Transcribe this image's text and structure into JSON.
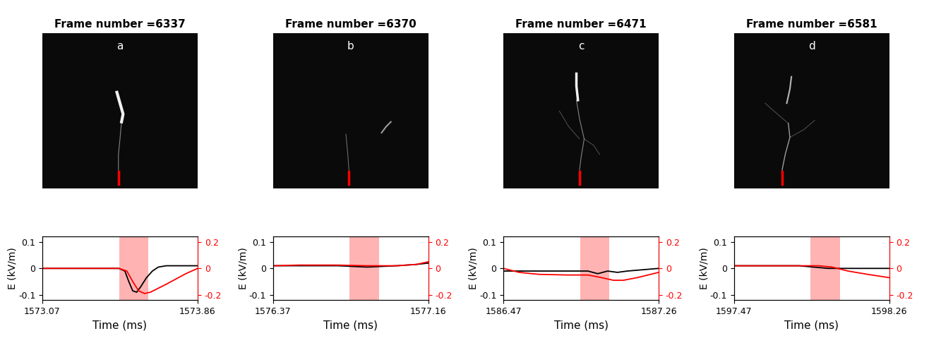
{
  "chart_data": [
    {
      "type": "line",
      "panel_title": "Frame number =6337",
      "panel_label": "a",
      "xlabel": "Time (ms)",
      "ylabel": "E (kV/m)",
      "xlim": [
        1573.07,
        1573.86
      ],
      "xticks": [
        1573.07,
        1573.86
      ],
      "ylim": [
        -0.12,
        0.12
      ],
      "yticks": [
        -0.1,
        0,
        0.1
      ],
      "y2lim": [
        -0.24,
        0.24
      ],
      "y2ticks": [
        -0.2,
        0,
        0.2
      ],
      "span": [
        1573.46,
        1573.61
      ],
      "series": [
        {
          "color": "black",
          "x": [
            1573.07,
            1573.2,
            1573.35,
            1573.46,
            1573.49,
            1573.51,
            1573.53,
            1573.55,
            1573.57,
            1573.6,
            1573.63,
            1573.66,
            1573.7,
            1573.78,
            1573.86
          ],
          "values": [
            0,
            0,
            0,
            0,
            -0.01,
            -0.05,
            -0.085,
            -0.09,
            -0.07,
            -0.035,
            -0.01,
            0.005,
            0.01,
            0.01,
            0.01
          ]
        },
        {
          "color": "red",
          "axis": "y2",
          "x": [
            1573.07,
            1573.2,
            1573.35,
            1573.46,
            1573.5,
            1573.53,
            1573.56,
            1573.59,
            1573.62,
            1573.66,
            1573.7,
            1573.75,
            1573.8,
            1573.86
          ],
          "values": [
            0,
            0,
            0,
            0,
            -0.02,
            -0.1,
            -0.17,
            -0.19,
            -0.18,
            -0.15,
            -0.12,
            -0.08,
            -0.04,
            0.0
          ]
        }
      ]
    },
    {
      "type": "line",
      "panel_title": "Frame number =6370",
      "panel_label": "b",
      "xlabel": "Time (ms)",
      "ylabel": "E (kV/m)",
      "xlim": [
        1576.37,
        1577.16
      ],
      "xticks": [
        1576.37,
        1577.16
      ],
      "ylim": [
        -0.12,
        0.12
      ],
      "yticks": [
        -0.1,
        0,
        0.1
      ],
      "y2lim": [
        -0.24,
        0.24
      ],
      "y2ticks": [
        -0.2,
        0,
        0.2
      ],
      "span": [
        1576.76,
        1576.91
      ],
      "series": [
        {
          "color": "black",
          "x": [
            1576.37,
            1576.5,
            1576.7,
            1576.85,
            1577.0,
            1577.1,
            1577.16
          ],
          "values": [
            0.01,
            0.01,
            0.01,
            0.005,
            0.01,
            0.015,
            0.02
          ]
        },
        {
          "color": "red",
          "axis": "y2",
          "x": [
            1576.37,
            1576.5,
            1576.7,
            1576.85,
            1577.0,
            1577.1,
            1577.16
          ],
          "values": [
            0.02,
            0.025,
            0.025,
            0.02,
            0.02,
            0.03,
            0.05
          ]
        }
      ]
    },
    {
      "type": "line",
      "panel_title": "Frame number =6471",
      "panel_label": "c",
      "xlabel": "Time (ms)",
      "ylabel": "E (kV/m)",
      "xlim": [
        1586.47,
        1587.26
      ],
      "xticks": [
        1586.47,
        1587.26
      ],
      "ylim": [
        -0.12,
        0.12
      ],
      "yticks": [
        -0.1,
        0,
        0.1
      ],
      "y2lim": [
        -0.24,
        0.24
      ],
      "y2ticks": [
        -0.2,
        0,
        0.2
      ],
      "span": [
        1586.86,
        1587.01
      ],
      "series": [
        {
          "color": "black",
          "x": [
            1586.47,
            1586.6,
            1586.8,
            1586.9,
            1586.95,
            1587.0,
            1587.05,
            1587.1,
            1587.26
          ],
          "values": [
            -0.01,
            -0.01,
            -0.01,
            -0.01,
            -0.02,
            -0.01,
            -0.015,
            -0.01,
            0.0
          ]
        },
        {
          "color": "red",
          "axis": "y2",
          "x": [
            1586.47,
            1586.55,
            1586.65,
            1586.8,
            1586.9,
            1586.97,
            1587.03,
            1587.08,
            1587.15,
            1587.26
          ],
          "values": [
            0.0,
            -0.03,
            -0.045,
            -0.05,
            -0.05,
            -0.07,
            -0.09,
            -0.09,
            -0.07,
            -0.03
          ]
        }
      ]
    },
    {
      "type": "line",
      "panel_title": "Frame number =6581",
      "panel_label": "d",
      "xlabel": "Time (ms)",
      "ylabel": "E (kV/m)",
      "xlim": [
        1597.47,
        1598.26
      ],
      "xticks": [
        1597.47,
        1598.26
      ],
      "ylim": [
        -0.12,
        0.12
      ],
      "yticks": [
        -0.1,
        0,
        0.1
      ],
      "y2lim": [
        -0.24,
        0.24
      ],
      "y2ticks": [
        -0.2,
        0,
        0.2
      ],
      "span": [
        1597.86,
        1598.01
      ],
      "series": [
        {
          "color": "black",
          "x": [
            1597.47,
            1597.6,
            1597.8,
            1597.95,
            1598.05,
            1598.26
          ],
          "values": [
            0.01,
            0.01,
            0.01,
            0.0,
            0.0,
            0.0
          ]
        },
        {
          "color": "red",
          "axis": "y2",
          "x": [
            1597.47,
            1597.7,
            1597.9,
            1597.97,
            1598.05,
            1598.15,
            1598.26
          ],
          "values": [
            0.02,
            0.02,
            0.02,
            0.01,
            -0.02,
            -0.045,
            -0.07
          ]
        }
      ]
    }
  ]
}
